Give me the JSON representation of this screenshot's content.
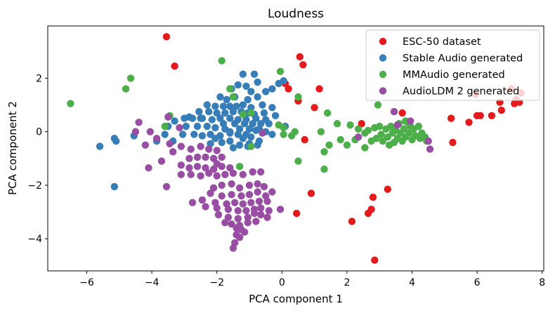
{
  "chart_data": {
    "type": "scatter",
    "title": "Loudness",
    "xlabel": "PCA component 1",
    "ylabel": "PCA component 2",
    "xlim": [
      -7.2,
      8.05
    ],
    "ylim": [
      -5.2,
      3.95
    ],
    "xticks": [
      -6,
      -4,
      -2,
      0,
      2,
      4,
      6,
      8
    ],
    "yticks": [
      -4,
      -2,
      0,
      2
    ],
    "tick_labels_x": [
      "−6",
      "−4",
      "−2",
      "0",
      "2",
      "4",
      "6",
      "8"
    ],
    "tick_labels_y": [
      "−4",
      "−2",
      "0",
      "2"
    ],
    "legend_position": "top-right",
    "series": [
      {
        "name": "ESC-50 dataset",
        "color": "#e41a1c",
        "points": [
          [
            -3.55,
            3.55
          ],
          [
            -3.3,
            2.45
          ],
          [
            0.55,
            2.8
          ],
          [
            0.65,
            2.5
          ],
          [
            1.15,
            1.6
          ],
          [
            0.1,
            1.8
          ],
          [
            0.2,
            1.6
          ],
          [
            0.5,
            1.15
          ],
          [
            0.7,
            -0.3
          ],
          [
            1.0,
            0.9
          ],
          [
            3.7,
            0.7
          ],
          [
            5.2,
            0.5
          ],
          [
            5.75,
            0.35
          ],
          [
            6.0,
            0.6
          ],
          [
            6.1,
            0.6
          ],
          [
            6.45,
            0.6
          ],
          [
            5.95,
            1.4
          ],
          [
            6.7,
            1.1
          ],
          [
            6.75,
            0.8
          ],
          [
            7.05,
            1.6
          ],
          [
            7.2,
            1.2
          ],
          [
            7.15,
            1.05
          ],
          [
            7.3,
            1.1
          ],
          [
            7.35,
            1.45
          ],
          [
            2.45,
            0.3
          ],
          [
            0.9,
            -2.3
          ],
          [
            0.45,
            -3.05
          ],
          [
            2.15,
            -3.35
          ],
          [
            2.65,
            -3.05
          ],
          [
            2.75,
            -2.9
          ],
          [
            2.8,
            -2.45
          ],
          [
            3.25,
            -2.15
          ],
          [
            2.85,
            -4.8
          ],
          [
            5.25,
            -0.4
          ]
        ]
      },
      {
        "name": "Stable Audio generated",
        "color": "#377eb8",
        "points": [
          [
            -1.2,
            2.15
          ],
          [
            -0.85,
            2.15
          ],
          [
            -0.75,
            1.85
          ],
          [
            -1.55,
            1.6
          ],
          [
            -0.95,
            1.5
          ],
          [
            -0.5,
            1.5
          ],
          [
            -0.3,
            1.6
          ],
          [
            -0.1,
            1.8
          ],
          [
            0.05,
            1.9
          ],
          [
            -1.9,
            1.3
          ],
          [
            -1.7,
            1.2
          ],
          [
            -1.45,
            1.3
          ],
          [
            -1.05,
            1.2
          ],
          [
            -0.75,
            1.3
          ],
          [
            -2.3,
            1.0
          ],
          [
            -2.05,
            0.95
          ],
          [
            -1.8,
            0.95
          ],
          [
            -1.6,
            0.95
          ],
          [
            -1.4,
            0.95
          ],
          [
            -1.2,
            1.0
          ],
          [
            -0.95,
            0.9
          ],
          [
            -0.6,
            1.0
          ],
          [
            -0.3,
            0.9
          ],
          [
            -2.55,
            0.75
          ],
          [
            -2.25,
            0.75
          ],
          [
            -2.0,
            0.7
          ],
          [
            -1.75,
            0.7
          ],
          [
            -1.5,
            0.75
          ],
          [
            -1.25,
            0.75
          ],
          [
            -1.05,
            0.7
          ],
          [
            -0.85,
            0.65
          ],
          [
            -0.55,
            0.7
          ],
          [
            -2.85,
            0.55
          ],
          [
            -2.45,
            0.5
          ],
          [
            -2.15,
            0.45
          ],
          [
            -1.9,
            0.5
          ],
          [
            -1.6,
            0.5
          ],
          [
            -1.35,
            0.45
          ],
          [
            -1.1,
            0.45
          ],
          [
            -0.8,
            0.5
          ],
          [
            -0.5,
            0.45
          ],
          [
            -3.3,
            0.4
          ],
          [
            -3.0,
            0.5
          ],
          [
            -2.75,
            0.5
          ],
          [
            -2.5,
            0.5
          ],
          [
            -1.8,
            0.3
          ],
          [
            -1.45,
            0.3
          ],
          [
            -1.15,
            0.3
          ],
          [
            -0.9,
            0.3
          ],
          [
            -0.65,
            0.3
          ],
          [
            -0.4,
            0.3
          ],
          [
            -3.5,
            0.2
          ],
          [
            -2.95,
            0.2
          ],
          [
            -2.6,
            0.2
          ],
          [
            -2.3,
            0.2
          ],
          [
            -2.05,
            0.15
          ],
          [
            -1.75,
            0.1
          ],
          [
            -1.3,
            0.1
          ],
          [
            -1.0,
            0.1
          ],
          [
            -0.7,
            0.1
          ],
          [
            -1.6,
            0.0
          ],
          [
            -1.35,
            -0.1
          ],
          [
            -1.1,
            -0.1
          ],
          [
            -0.8,
            0.05
          ],
          [
            -0.5,
            0.0
          ],
          [
            -3.6,
            -0.1
          ],
          [
            -3.05,
            -0.1
          ],
          [
            -2.7,
            -0.1
          ],
          [
            -2.45,
            -0.15
          ],
          [
            -2.2,
            -0.1
          ],
          [
            -1.9,
            -0.15
          ],
          [
            -1.2,
            -0.25
          ],
          [
            -0.95,
            -0.2
          ],
          [
            -3.35,
            -0.35
          ],
          [
            -3.85,
            -0.35
          ],
          [
            -2.2,
            -0.45
          ],
          [
            -1.85,
            -0.4
          ],
          [
            -1.6,
            -0.35
          ],
          [
            -1.3,
            -0.5
          ],
          [
            -1.0,
            -0.45
          ],
          [
            -0.7,
            -0.35
          ],
          [
            -1.5,
            -0.6
          ],
          [
            -1.05,
            -0.55
          ],
          [
            -0.75,
            -0.5
          ],
          [
            -4.55,
            -0.15
          ],
          [
            -5.15,
            -0.25
          ],
          [
            -5.1,
            -0.35
          ],
          [
            -5.6,
            -0.55
          ],
          [
            -5.15,
            -2.05
          ],
          [
            -2.05,
            -0.25
          ],
          [
            -1.6,
            -0.05
          ],
          [
            -0.3,
            -0.1
          ],
          [
            0.1,
            0.2
          ],
          [
            -0.2,
            0.6
          ],
          [
            -1.35,
            1.75
          ],
          [
            -1.1,
            1.7
          ]
        ]
      },
      {
        "name": "MMAudio generated",
        "color": "#4daf4a",
        "points": [
          [
            -6.5,
            1.05
          ],
          [
            -4.8,
            1.6
          ],
          [
            -4.65,
            2.0
          ],
          [
            -1.85,
            2.65
          ],
          [
            -1.6,
            1.6
          ],
          [
            -1.5,
            1.3
          ],
          [
            -1.2,
            0.65
          ],
          [
            -0.95,
            0.7
          ],
          [
            -0.1,
            0.25
          ],
          [
            -0.05,
            2.25
          ],
          [
            0.5,
            1.3
          ],
          [
            0.05,
            0.15
          ],
          [
            1.2,
            0.0
          ],
          [
            1.4,
            0.7
          ],
          [
            1.45,
            -0.5
          ],
          [
            1.3,
            -0.75
          ],
          [
            1.7,
            0.3
          ],
          [
            2.1,
            0.25
          ],
          [
            2.25,
            -0.3
          ],
          [
            2.35,
            0.1
          ],
          [
            2.55,
            -0.05
          ],
          [
            2.65,
            0.05
          ],
          [
            2.75,
            -0.35
          ],
          [
            2.85,
            0.15
          ],
          [
            2.9,
            -0.25
          ],
          [
            3.0,
            0.2
          ],
          [
            3.05,
            -0.1
          ],
          [
            3.1,
            -0.35
          ],
          [
            3.2,
            0.1
          ],
          [
            3.25,
            -0.2
          ],
          [
            3.35,
            0.2
          ],
          [
            3.4,
            -0.05
          ],
          [
            3.45,
            -0.4
          ],
          [
            3.5,
            0.05
          ],
          [
            3.55,
            -0.25
          ],
          [
            3.6,
            0.3
          ],
          [
            3.65,
            -0.05
          ],
          [
            3.7,
            -0.35
          ],
          [
            3.75,
            0.1
          ],
          [
            3.8,
            -0.2
          ],
          [
            3.85,
            0.35
          ],
          [
            3.9,
            -0.05
          ],
          [
            3.95,
            0.2
          ],
          [
            4.0,
            -0.3
          ],
          [
            4.05,
            0.1
          ],
          [
            4.1,
            -0.15
          ],
          [
            4.2,
            0.2
          ],
          [
            4.25,
            -0.25
          ],
          [
            4.3,
            -0.05
          ],
          [
            4.4,
            -0.2
          ],
          [
            4.45,
            -0.35
          ],
          [
            2.95,
            1.0
          ],
          [
            3.8,
            0.4
          ],
          [
            0.3,
            -0.15
          ],
          [
            0.05,
            -0.1
          ],
          [
            0.4,
            0.0
          ],
          [
            0.5,
            -1.1
          ],
          [
            1.3,
            -1.4
          ],
          [
            2.0,
            -0.5
          ],
          [
            1.8,
            -0.3
          ],
          [
            -1.3,
            -1.3
          ],
          [
            -0.95,
            -0.55
          ],
          [
            -3.6,
            0.2
          ],
          [
            -3.45,
            0.6
          ],
          [
            2.55,
            -0.6
          ],
          [
            3.3,
            -0.5
          ]
        ]
      },
      {
        "name": "AudioLDM 2 generated",
        "color": "#984ea3",
        "points": [
          [
            -4.4,
            0.35
          ],
          [
            -4.05,
            0.0
          ],
          [
            -3.85,
            -0.25
          ],
          [
            -4.2,
            -0.5
          ],
          [
            -3.5,
            0.55
          ],
          [
            -3.15,
            0.15
          ],
          [
            -3.45,
            -0.45
          ],
          [
            -3.35,
            -0.75
          ],
          [
            -3.1,
            -0.55
          ],
          [
            -2.8,
            -0.65
          ],
          [
            -2.5,
            -0.55
          ],
          [
            -2.25,
            -0.65
          ],
          [
            -2.0,
            -0.7
          ],
          [
            -2.85,
            -1.0
          ],
          [
            -2.6,
            -0.95
          ],
          [
            -2.35,
            -0.95
          ],
          [
            -2.1,
            -1.0
          ],
          [
            -1.85,
            -0.95
          ],
          [
            -3.1,
            -1.25
          ],
          [
            -2.85,
            -1.35
          ],
          [
            -2.6,
            -1.3
          ],
          [
            -2.35,
            -1.35
          ],
          [
            -2.1,
            -1.4
          ],
          [
            -1.85,
            -1.3
          ],
          [
            -1.6,
            -1.35
          ],
          [
            -3.1,
            -1.6
          ],
          [
            -2.8,
            -1.6
          ],
          [
            -2.5,
            -1.65
          ],
          [
            -2.25,
            -1.55
          ],
          [
            -2.0,
            -1.65
          ],
          [
            -1.75,
            -1.6
          ],
          [
            -1.5,
            -1.55
          ],
          [
            -1.2,
            -1.6
          ],
          [
            -0.9,
            -1.5
          ],
          [
            -0.65,
            -1.5
          ],
          [
            -4.1,
            -1.35
          ],
          [
            -3.55,
            -2.05
          ],
          [
            -2.1,
            -2.1
          ],
          [
            -1.85,
            -2.0
          ],
          [
            -1.55,
            -1.95
          ],
          [
            -1.3,
            -2.1
          ],
          [
            -1.0,
            -2.0
          ],
          [
            -0.75,
            -1.95
          ],
          [
            -0.55,
            -2.05
          ],
          [
            -2.2,
            -2.3
          ],
          [
            -1.85,
            -2.4
          ],
          [
            -1.55,
            -2.35
          ],
          [
            -1.25,
            -2.4
          ],
          [
            -1.0,
            -2.35
          ],
          [
            -0.75,
            -2.25
          ],
          [
            -0.5,
            -2.4
          ],
          [
            -0.3,
            -2.25
          ],
          [
            -2.05,
            -2.65
          ],
          [
            -1.7,
            -2.7
          ],
          [
            -1.45,
            -2.65
          ],
          [
            -1.2,
            -2.7
          ],
          [
            -0.95,
            -2.65
          ],
          [
            -0.7,
            -2.6
          ],
          [
            -0.45,
            -2.6
          ],
          [
            -2.75,
            -2.65
          ],
          [
            -2.45,
            -2.55
          ],
          [
            -2.35,
            -2.8
          ],
          [
            -2.0,
            -2.85
          ],
          [
            -1.65,
            -2.9
          ],
          [
            -1.35,
            -2.95
          ],
          [
            -1.1,
            -2.95
          ],
          [
            -0.85,
            -2.9
          ],
          [
            -0.65,
            -2.85
          ],
          [
            -0.4,
            -2.95
          ],
          [
            -0.05,
            -2.9
          ],
          [
            -1.95,
            -3.1
          ],
          [
            -1.65,
            -3.2
          ],
          [
            -1.35,
            -3.25
          ],
          [
            -1.05,
            -3.2
          ],
          [
            -0.85,
            -3.05
          ],
          [
            -0.65,
            -3.1
          ],
          [
            -0.45,
            -3.2
          ],
          [
            -1.75,
            -3.4
          ],
          [
            -1.55,
            -3.45
          ],
          [
            -1.3,
            -3.5
          ],
          [
            -1.05,
            -3.4
          ],
          [
            -0.8,
            -3.35
          ],
          [
            -1.25,
            -3.65
          ],
          [
            -1.15,
            -3.75
          ],
          [
            -1.4,
            -3.85
          ],
          [
            -1.3,
            -3.95
          ],
          [
            -1.45,
            -4.15
          ],
          [
            -1.5,
            -4.35
          ],
          [
            -1.4,
            -3.6
          ],
          [
            -2.0,
            -1.2
          ],
          [
            -0.6,
            -0.05
          ],
          [
            2.35,
            -0.2
          ],
          [
            3.55,
            0.25
          ],
          [
            3.45,
            0.75
          ],
          [
            3.95,
            0.4
          ],
          [
            4.5,
            -0.35
          ],
          [
            4.55,
            -0.65
          ],
          [
            -4.5,
            0.0
          ],
          [
            -3.7,
            -1.1
          ]
        ]
      }
    ]
  }
}
